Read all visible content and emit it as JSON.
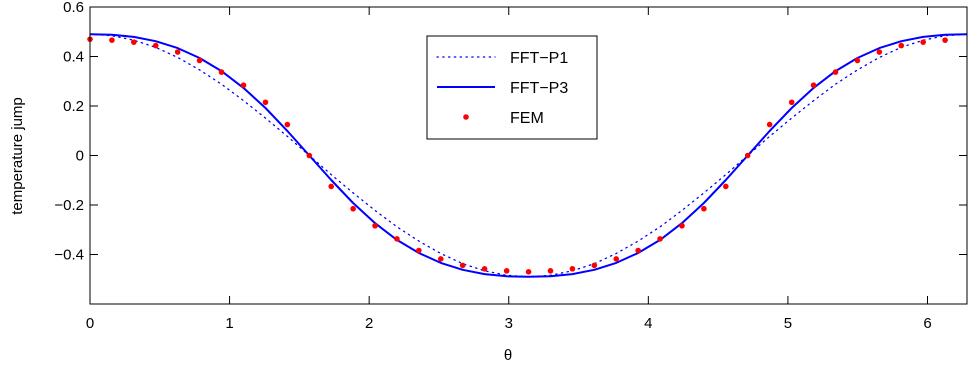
{
  "chart_data": {
    "type": "line",
    "title": "",
    "xlabel": "θ",
    "ylabel": "temperature jump",
    "xlim": [
      0,
      6.283
    ],
    "ylim": [
      -0.6,
      0.6
    ],
    "xticks": [
      0,
      1,
      2,
      3,
      4,
      5,
      6
    ],
    "xtick_labels": [
      "0",
      "1",
      "2",
      "3",
      "4",
      "5",
      "6"
    ],
    "yticks": [
      -0.4,
      -0.2,
      0,
      0.2,
      0.4,
      0.6
    ],
    "ytick_labels": [
      "−0.4",
      "−0.2",
      "0",
      "0.2",
      "0.4",
      "0.6"
    ],
    "grid": false,
    "legend_position": "top-center",
    "series": [
      {
        "name": "FFT−P1",
        "style": "dotted",
        "color": "#0000ff",
        "x": [
          0,
          0.157,
          0.314,
          0.471,
          0.628,
          0.785,
          0.942,
          1.1,
          1.257,
          1.414,
          1.571,
          1.728,
          1.885,
          2.042,
          2.199,
          2.356,
          2.513,
          2.67,
          2.827,
          2.985,
          3.142,
          3.299,
          3.456,
          3.613,
          3.77,
          3.927,
          4.084,
          4.241,
          4.398,
          4.555,
          4.712,
          4.869,
          5.027,
          5.184,
          5.341,
          5.498,
          5.655,
          5.812,
          5.969,
          6.126,
          6.283
        ],
        "y": [
          0.49,
          0.484,
          0.466,
          0.437,
          0.396,
          0.346,
          0.288,
          0.222,
          0.151,
          0.077,
          0.0,
          -0.077,
          -0.151,
          -0.222,
          -0.288,
          -0.346,
          -0.396,
          -0.437,
          -0.466,
          -0.484,
          -0.49,
          -0.484,
          -0.466,
          -0.437,
          -0.396,
          -0.346,
          -0.288,
          -0.222,
          -0.151,
          -0.077,
          0.0,
          0.077,
          0.151,
          0.222,
          0.288,
          0.346,
          0.396,
          0.437,
          0.466,
          0.484,
          0.49
        ]
      },
      {
        "name": "FFT−P3",
        "style": "solid",
        "color": "#0000ff",
        "x": [
          0,
          0.157,
          0.314,
          0.471,
          0.628,
          0.785,
          0.942,
          1.1,
          1.257,
          1.414,
          1.571,
          1.728,
          1.885,
          2.042,
          2.199,
          2.356,
          2.513,
          2.67,
          2.827,
          2.985,
          3.142,
          3.299,
          3.456,
          3.613,
          3.77,
          3.927,
          4.084,
          4.241,
          4.398,
          4.555,
          4.712,
          4.869,
          5.027,
          5.184,
          5.341,
          5.498,
          5.655,
          5.812,
          5.969,
          6.126,
          6.283
        ],
        "y": [
          0.49,
          0.488,
          0.479,
          0.462,
          0.434,
          0.394,
          0.341,
          0.273,
          0.192,
          0.099,
          0.0,
          -0.099,
          -0.192,
          -0.273,
          -0.341,
          -0.394,
          -0.434,
          -0.462,
          -0.479,
          -0.488,
          -0.49,
          -0.488,
          -0.479,
          -0.462,
          -0.434,
          -0.394,
          -0.341,
          -0.273,
          -0.192,
          -0.099,
          0.0,
          0.099,
          0.192,
          0.273,
          0.341,
          0.394,
          0.434,
          0.462,
          0.479,
          0.488,
          0.49
        ]
      },
      {
        "name": "FEM",
        "style": "markers",
        "color": "#ff0000",
        "x": [
          0,
          0.157,
          0.314,
          0.471,
          0.628,
          0.785,
          0.942,
          1.1,
          1.257,
          1.414,
          1.571,
          1.728,
          1.885,
          2.042,
          2.199,
          2.356,
          2.513,
          2.67,
          2.827,
          2.985,
          3.142,
          3.299,
          3.456,
          3.613,
          3.77,
          3.927,
          4.084,
          4.241,
          4.398,
          4.555,
          4.712,
          4.869,
          5.027,
          5.184,
          5.341,
          5.498,
          5.655,
          5.812,
          5.969,
          6.126
        ],
        "y": [
          0.47,
          0.466,
          0.458,
          0.444,
          0.418,
          0.384,
          0.337,
          0.284,
          0.215,
          0.125,
          0.0,
          -0.125,
          -0.215,
          -0.284,
          -0.337,
          -0.384,
          -0.418,
          -0.444,
          -0.458,
          -0.466,
          -0.47,
          -0.466,
          -0.458,
          -0.444,
          -0.418,
          -0.384,
          -0.337,
          -0.284,
          -0.215,
          -0.125,
          0.0,
          0.125,
          0.215,
          0.284,
          0.337,
          0.384,
          0.418,
          0.444,
          0.458,
          0.466
        ]
      }
    ]
  }
}
